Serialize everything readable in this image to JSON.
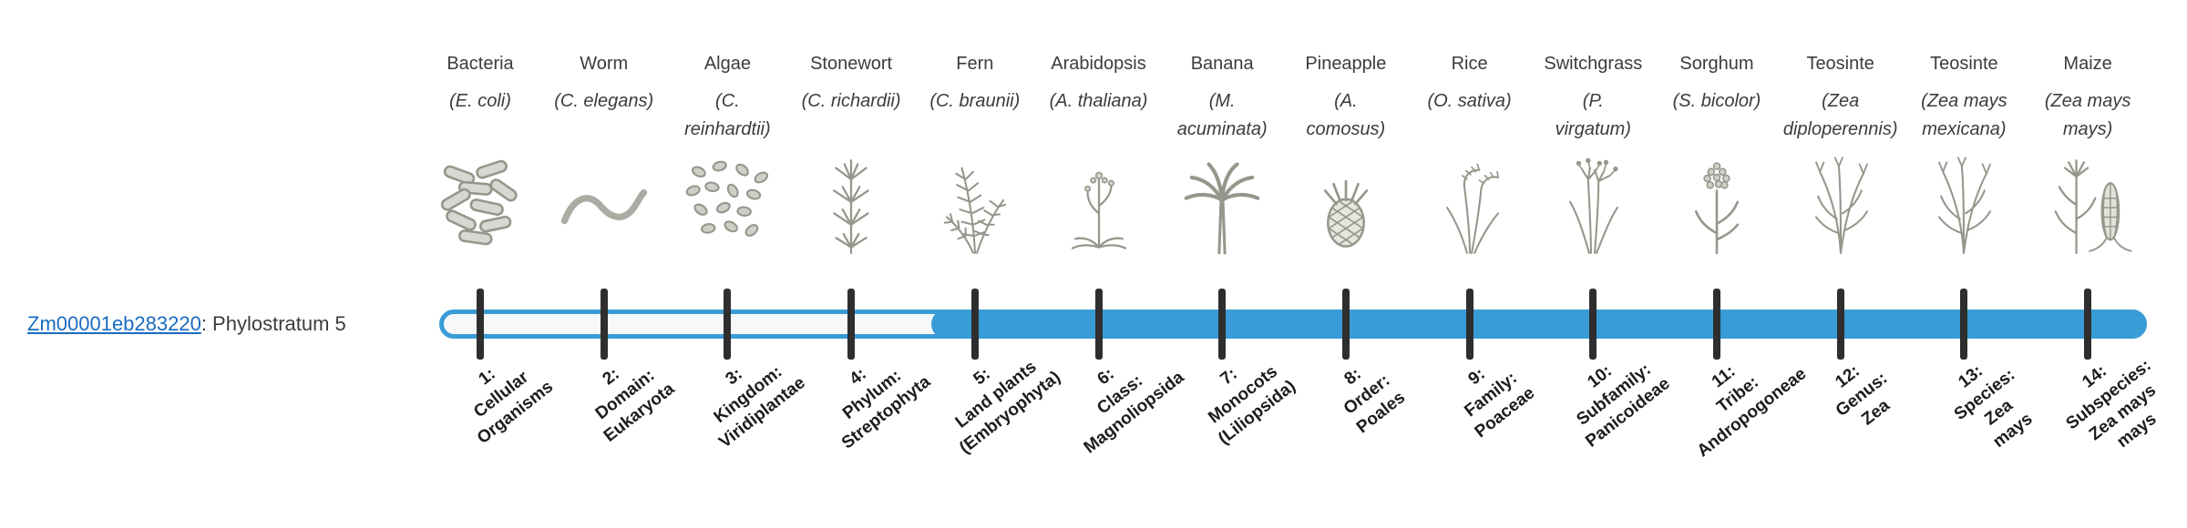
{
  "gene": {
    "id": "Zm00001eb283220",
    "phylostratum_text": ": Phylostratum 5",
    "phylostratum": 5
  },
  "colors": {
    "bar": "#3A9CD6",
    "bar_track": "#F6F8F9",
    "tick": "#2E2E2E",
    "link": "#1A6BC0",
    "text": "#3C3C3C",
    "stratum_text": "#1C1C1C",
    "illustration": "#96968C"
  },
  "taxa": [
    {
      "common": "Bacteria",
      "scientific": "(E. coli)",
      "icon": "bacteria",
      "stratum": "1:\nCellular\nOrganisms"
    },
    {
      "common": "Worm",
      "scientific": "(C. elegans)",
      "icon": "worm",
      "stratum": "2:\nDomain:\nEukaryota"
    },
    {
      "common": "Algae",
      "scientific": "(C.\nreinhardtii)",
      "icon": "algae",
      "stratum": "3:\nKingdom:\nViridiplantae"
    },
    {
      "common": "Stonewort",
      "scientific": "(C. richardii)",
      "icon": "stonewort",
      "stratum": "4:\nPhylum:\nStreptophyta"
    },
    {
      "common": "Fern",
      "scientific": "(C. braunii)",
      "icon": "fern",
      "stratum": "5:\nLand plants\n(Embryophyta)"
    },
    {
      "common": "Arabidopsis",
      "scientific": "(A. thaliana)",
      "icon": "arabidopsis",
      "stratum": "6:\nClass:\nMagnoliopsida"
    },
    {
      "common": "Banana",
      "scientific": "(M.\nacuminata)",
      "icon": "banana",
      "stratum": "7:\nMonocots\n(Liliopsida)"
    },
    {
      "common": "Pineapple",
      "scientific": "(A.\ncomosus)",
      "icon": "pineapple",
      "stratum": "8:\nOrder:\nPoales"
    },
    {
      "common": "Rice",
      "scientific": "(O. sativa)",
      "icon": "rice",
      "stratum": "9:\nFamily:\nPoaceae"
    },
    {
      "common": "Switchgrass",
      "scientific": "(P.\nvirgatum)",
      "icon": "switchgrass",
      "stratum": "10:\nSubfamily:\nPanicoideae"
    },
    {
      "common": "Sorghum",
      "scientific": "(S. bicolor)",
      "icon": "sorghum",
      "stratum": "11:\nTribe:\nAndropogoneae"
    },
    {
      "common": "Teosinte",
      "scientific": "(Zea\ndiploperennis)",
      "icon": "teosinte",
      "stratum": "12:\nGenus:\nZea"
    },
    {
      "common": "Teosinte",
      "scientific": "(Zea mays\nmexicana)",
      "icon": "teosinte",
      "stratum": "13:\nSpecies:\nZea\nmays"
    },
    {
      "common": "Maize",
      "scientific": "(Zea mays\nmays)",
      "icon": "maize",
      "stratum": "14:\nSubspecies:\nZea mays\nmays"
    }
  ]
}
